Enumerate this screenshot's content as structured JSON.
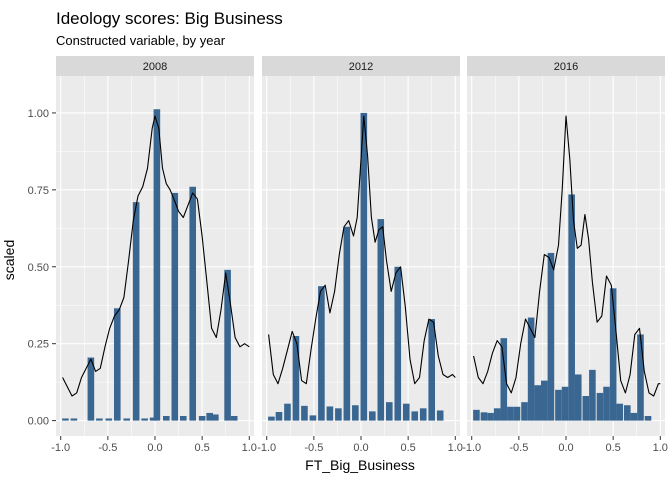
{
  "chart_data": {
    "type": "histogram",
    "title": "Ideology scores: Big Business",
    "subtitle": "Constructed variable, by year",
    "xlabel": "FT_Big_Business",
    "ylabel": "scaled",
    "xlim": [
      -1.05,
      1.05
    ],
    "ylim": [
      -0.05,
      1.12
    ],
    "x_ticks": [
      -1.0,
      -0.5,
      0.0,
      0.5,
      1.0
    ],
    "x_tick_labels": [
      "-1.0",
      "-0.5",
      "0.0",
      "0.5",
      "1.0"
    ],
    "y_ticks": [
      0.0,
      0.25,
      0.5,
      0.75,
      1.0
    ],
    "y_tick_labels": [
      "0.00",
      "0.25",
      "0.50",
      "0.75",
      "1.00"
    ],
    "bar_width": 0.07,
    "colors": {
      "bar": "#3a6791",
      "density_line": "#000000",
      "panel_bg": "#ebebeb",
      "strip_bg": "#d9d9d9",
      "grid": "#ffffff"
    },
    "panels": [
      {
        "label": "2008",
        "bars": [
          {
            "x": -0.95,
            "y": 0.007
          },
          {
            "x": -0.86,
            "y": 0.007
          },
          {
            "x": -0.68,
            "y": 0.205
          },
          {
            "x": -0.59,
            "y": 0.007
          },
          {
            "x": -0.49,
            "y": 0.007
          },
          {
            "x": -0.4,
            "y": 0.365
          },
          {
            "x": -0.3,
            "y": 0.007
          },
          {
            "x": -0.2,
            "y": 0.71
          },
          {
            "x": -0.11,
            "y": 0.007
          },
          {
            "x": -0.02,
            "y": 0.01
          },
          {
            "x": 0.02,
            "y": 1.012
          },
          {
            "x": 0.12,
            "y": 0.015
          },
          {
            "x": 0.21,
            "y": 0.74
          },
          {
            "x": 0.3,
            "y": 0.015
          },
          {
            "x": 0.4,
            "y": 0.76
          },
          {
            "x": 0.5,
            "y": 0.015
          },
          {
            "x": 0.58,
            "y": 0.025
          },
          {
            "x": 0.64,
            "y": 0.02
          },
          {
            "x": 0.77,
            "y": 0.49
          },
          {
            "x": 0.84,
            "y": 0.015
          }
        ],
        "density": [
          [
            -0.98,
            0.14
          ],
          [
            -0.93,
            0.11
          ],
          [
            -0.88,
            0.08
          ],
          [
            -0.83,
            0.09
          ],
          [
            -0.78,
            0.14
          ],
          [
            -0.73,
            0.17
          ],
          [
            -0.68,
            0.2
          ],
          [
            -0.63,
            0.16
          ],
          [
            -0.58,
            0.17
          ],
          [
            -0.53,
            0.24
          ],
          [
            -0.48,
            0.3
          ],
          [
            -0.43,
            0.34
          ],
          [
            -0.38,
            0.36
          ],
          [
            -0.33,
            0.4
          ],
          [
            -0.28,
            0.52
          ],
          [
            -0.23,
            0.65
          ],
          [
            -0.18,
            0.73
          ],
          [
            -0.13,
            0.76
          ],
          [
            -0.08,
            0.82
          ],
          [
            -0.03,
            0.95
          ],
          [
            0.0,
            0.99
          ],
          [
            0.04,
            0.95
          ],
          [
            0.08,
            0.82
          ],
          [
            0.12,
            0.77
          ],
          [
            0.16,
            0.75
          ],
          [
            0.2,
            0.72
          ],
          [
            0.25,
            0.68
          ],
          [
            0.3,
            0.66
          ],
          [
            0.35,
            0.7
          ],
          [
            0.4,
            0.74
          ],
          [
            0.45,
            0.72
          ],
          [
            0.5,
            0.6
          ],
          [
            0.55,
            0.45
          ],
          [
            0.6,
            0.3
          ],
          [
            0.65,
            0.27
          ],
          [
            0.7,
            0.36
          ],
          [
            0.75,
            0.48
          ],
          [
            0.8,
            0.38
          ],
          [
            0.85,
            0.27
          ],
          [
            0.9,
            0.24
          ],
          [
            0.95,
            0.25
          ],
          [
            1.0,
            0.24
          ]
        ]
      },
      {
        "label": "2012",
        "bars": [
          {
            "x": -0.95,
            "y": 0.013
          },
          {
            "x": -0.87,
            "y": 0.028
          },
          {
            "x": -0.78,
            "y": 0.055
          },
          {
            "x": -0.69,
            "y": 0.275
          },
          {
            "x": -0.6,
            "y": 0.048
          },
          {
            "x": -0.51,
            "y": 0.017
          },
          {
            "x": -0.42,
            "y": 0.437
          },
          {
            "x": -0.33,
            "y": 0.046
          },
          {
            "x": -0.24,
            "y": 0.04
          },
          {
            "x": -0.15,
            "y": 0.63
          },
          {
            "x": -0.06,
            "y": 0.05
          },
          {
            "x": 0.03,
            "y": 1.0
          },
          {
            "x": 0.12,
            "y": 0.03
          },
          {
            "x": 0.21,
            "y": 0.655
          },
          {
            "x": 0.3,
            "y": 0.06
          },
          {
            "x": 0.39,
            "y": 0.5
          },
          {
            "x": 0.48,
            "y": 0.055
          },
          {
            "x": 0.57,
            "y": 0.03
          },
          {
            "x": 0.66,
            "y": 0.04
          },
          {
            "x": 0.75,
            "y": 0.33
          },
          {
            "x": 0.84,
            "y": 0.033
          }
        ],
        "density": [
          [
            -0.98,
            0.28
          ],
          [
            -0.93,
            0.15
          ],
          [
            -0.88,
            0.12
          ],
          [
            -0.83,
            0.17
          ],
          [
            -0.78,
            0.23
          ],
          [
            -0.73,
            0.29
          ],
          [
            -0.68,
            0.25
          ],
          [
            -0.63,
            0.13
          ],
          [
            -0.58,
            0.12
          ],
          [
            -0.53,
            0.23
          ],
          [
            -0.48,
            0.33
          ],
          [
            -0.43,
            0.42
          ],
          [
            -0.38,
            0.44
          ],
          [
            -0.33,
            0.35
          ],
          [
            -0.28,
            0.42
          ],
          [
            -0.23,
            0.54
          ],
          [
            -0.18,
            0.63
          ],
          [
            -0.13,
            0.65
          ],
          [
            -0.08,
            0.6
          ],
          [
            -0.04,
            0.66
          ],
          [
            0.0,
            0.85
          ],
          [
            0.03,
            0.99
          ],
          [
            0.07,
            0.86
          ],
          [
            0.11,
            0.66
          ],
          [
            0.15,
            0.58
          ],
          [
            0.19,
            0.62
          ],
          [
            0.23,
            0.63
          ],
          [
            0.27,
            0.52
          ],
          [
            0.32,
            0.42
          ],
          [
            0.37,
            0.48
          ],
          [
            0.42,
            0.5
          ],
          [
            0.47,
            0.37
          ],
          [
            0.52,
            0.2
          ],
          [
            0.57,
            0.12
          ],
          [
            0.62,
            0.14
          ],
          [
            0.67,
            0.26
          ],
          [
            0.72,
            0.33
          ],
          [
            0.77,
            0.32
          ],
          [
            0.82,
            0.21
          ],
          [
            0.87,
            0.15
          ],
          [
            0.92,
            0.14
          ],
          [
            0.97,
            0.15
          ],
          [
            1.0,
            0.14
          ]
        ]
      },
      {
        "label": "2016",
        "bars": [
          {
            "x": -0.95,
            "y": 0.035
          },
          {
            "x": -0.87,
            "y": 0.027
          },
          {
            "x": -0.8,
            "y": 0.025
          },
          {
            "x": -0.73,
            "y": 0.04
          },
          {
            "x": -0.66,
            "y": 0.268
          },
          {
            "x": -0.59,
            "y": 0.045
          },
          {
            "x": -0.52,
            "y": 0.045
          },
          {
            "x": -0.44,
            "y": 0.06
          },
          {
            "x": -0.37,
            "y": 0.335
          },
          {
            "x": -0.3,
            "y": 0.115
          },
          {
            "x": -0.23,
            "y": 0.13
          },
          {
            "x": -0.16,
            "y": 0.545
          },
          {
            "x": -0.08,
            "y": 0.1
          },
          {
            "x": -0.01,
            "y": 0.11
          },
          {
            "x": 0.06,
            "y": 0.735
          },
          {
            "x": 0.13,
            "y": 0.15
          },
          {
            "x": 0.21,
            "y": 0.08
          },
          {
            "x": 0.28,
            "y": 0.165
          },
          {
            "x": 0.36,
            "y": 0.09
          },
          {
            "x": 0.43,
            "y": 0.11
          },
          {
            "x": 0.5,
            "y": 0.43
          },
          {
            "x": 0.57,
            "y": 0.055
          },
          {
            "x": 0.65,
            "y": 0.05
          },
          {
            "x": 0.72,
            "y": 0.025
          },
          {
            "x": 0.79,
            "y": 0.28
          },
          {
            "x": 0.87,
            "y": 0.015
          }
        ],
        "density": [
          [
            -0.98,
            0.21
          ],
          [
            -0.93,
            0.14
          ],
          [
            -0.88,
            0.12
          ],
          [
            -0.83,
            0.16
          ],
          [
            -0.78,
            0.22
          ],
          [
            -0.73,
            0.26
          ],
          [
            -0.68,
            0.24
          ],
          [
            -0.63,
            0.12
          ],
          [
            -0.58,
            0.09
          ],
          [
            -0.53,
            0.14
          ],
          [
            -0.48,
            0.25
          ],
          [
            -0.43,
            0.33
          ],
          [
            -0.38,
            0.3
          ],
          [
            -0.33,
            0.27
          ],
          [
            -0.28,
            0.42
          ],
          [
            -0.23,
            0.54
          ],
          [
            -0.18,
            0.53
          ],
          [
            -0.13,
            0.49
          ],
          [
            -0.08,
            0.57
          ],
          [
            -0.04,
            0.75
          ],
          [
            0.0,
            0.99
          ],
          [
            0.04,
            0.85
          ],
          [
            0.08,
            0.65
          ],
          [
            0.12,
            0.56
          ],
          [
            0.16,
            0.57
          ],
          [
            0.2,
            0.67
          ],
          [
            0.24,
            0.59
          ],
          [
            0.28,
            0.45
          ],
          [
            0.33,
            0.32
          ],
          [
            0.38,
            0.34
          ],
          [
            0.43,
            0.47
          ],
          [
            0.48,
            0.44
          ],
          [
            0.53,
            0.29
          ],
          [
            0.58,
            0.13
          ],
          [
            0.63,
            0.09
          ],
          [
            0.68,
            0.15
          ],
          [
            0.73,
            0.28
          ],
          [
            0.78,
            0.3
          ],
          [
            0.83,
            0.16
          ],
          [
            0.88,
            0.09
          ],
          [
            0.93,
            0.08
          ],
          [
            0.98,
            0.12
          ],
          [
            1.0,
            0.12
          ]
        ]
      }
    ]
  }
}
